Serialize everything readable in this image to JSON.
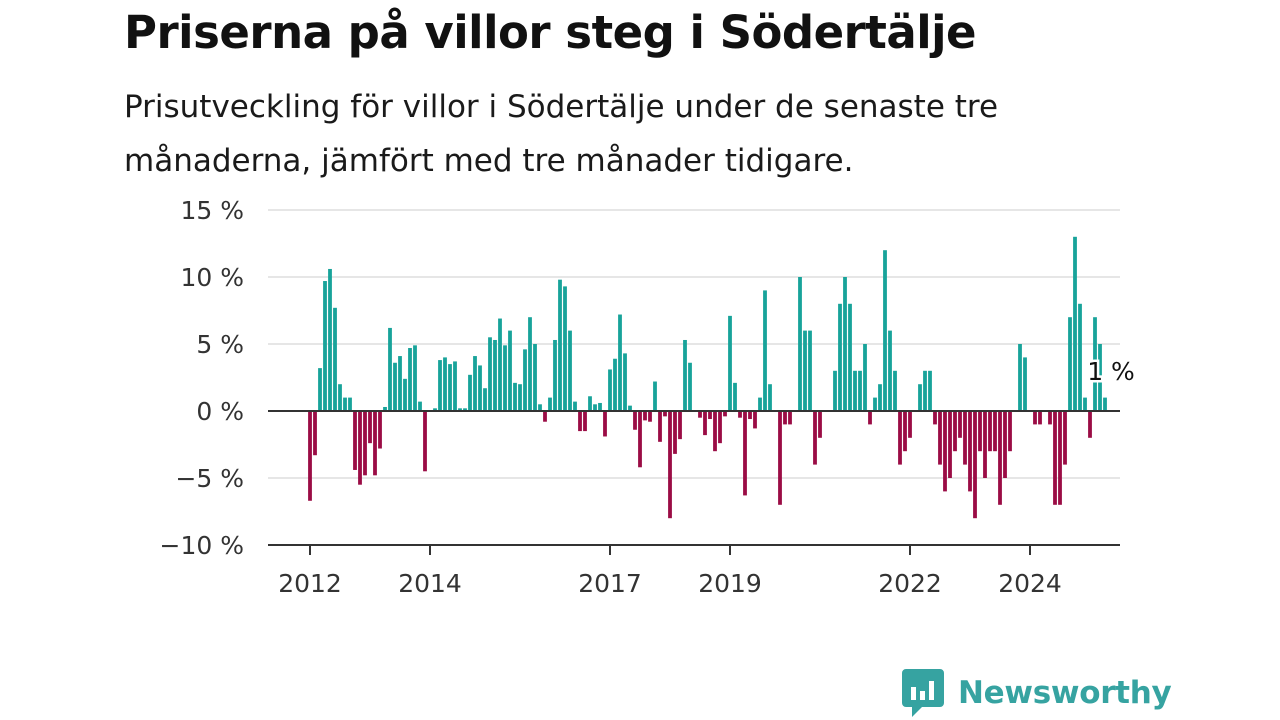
{
  "title": "Priserna på villor steg i Södertälje",
  "subtitle": "Prisutveckling för villor i Södertälje under de senaste tre månaderna, jämfört med tre månader tidigare.",
  "brand": {
    "name": "Newsworthy"
  },
  "colors": {
    "positive": "#18a39a",
    "negative": "#9b0c45",
    "grid": "#dddddd",
    "axis": "#333333",
    "brand": "#36a3a1"
  },
  "chart_data": {
    "type": "bar",
    "title": "Priserna på villor steg i Södertälje",
    "xlabel": "",
    "ylabel": "",
    "ylim": [
      -10,
      15
    ],
    "yticks": [
      15,
      10,
      5,
      0,
      -5,
      -10
    ],
    "ytick_labels": [
      "15 %",
      "10 %",
      "5 %",
      "0 %",
      "−5 %",
      "−10 %"
    ],
    "xtick_labels": [
      "2012",
      "2014",
      "2017",
      "2019",
      "2022",
      "2024"
    ],
    "x_start": "2012-01",
    "frequency": "monthly",
    "grid": true,
    "annotation": {
      "text": "1 %",
      "target": "last"
    },
    "values": [
      -6.7,
      -3.3,
      3.2,
      9.7,
      10.6,
      7.7,
      2.0,
      1.0,
      1.0,
      -4.4,
      -5.5,
      -4.8,
      -2.4,
      -4.8,
      -2.8,
      0.3,
      6.2,
      3.6,
      4.1,
      2.4,
      4.7,
      4.9,
      0.7,
      -4.5,
      0.0,
      0.2,
      3.8,
      4.0,
      3.5,
      3.7,
      0.2,
      0.2,
      2.7,
      4.1,
      3.4,
      1.7,
      5.5,
      5.3,
      6.9,
      4.9,
      6.0,
      2.1,
      2.0,
      4.6,
      7.0,
      5.0,
      0.5,
      -0.8,
      1.0,
      5.3,
      9.8,
      9.3,
      6.0,
      0.7,
      -1.5,
      -1.5,
      1.1,
      0.5,
      0.6,
      -1.9,
      3.1,
      3.9,
      7.2,
      4.3,
      0.4,
      -1.4,
      -4.2,
      -0.7,
      -0.8,
      2.2,
      -2.3,
      -0.4,
      -8.0,
      -3.2,
      -2.1,
      5.3,
      3.6,
      0.0,
      -0.5,
      -1.8,
      -0.6,
      -3.0,
      -2.4,
      -0.4,
      7.1,
      2.1,
      -0.5,
      -6.3,
      -0.6,
      -1.3,
      1.0,
      9.0,
      2.0,
      0.0,
      -7.0,
      -1.0,
      -1.0,
      0.0,
      10.0,
      6.0,
      6.0,
      -4.0,
      -2.0,
      0.0,
      0.0,
      3.0,
      8.0,
      10.0,
      8.0,
      3.0,
      3.0,
      5.0,
      -1.0,
      1.0,
      2.0,
      12.0,
      6.0,
      3.0,
      -4.0,
      -3.0,
      -2.0,
      0.0,
      2.0,
      3.0,
      3.0,
      -1.0,
      -4.0,
      -6.0,
      -5.0,
      -3.0,
      -2.0,
      -4.0,
      -6.0,
      -8.0,
      -3.0,
      -5.0,
      -3.0,
      -3.0,
      -7.0,
      -5.0,
      -3.0,
      0.0,
      5.0,
      4.0,
      0.0,
      -1.0,
      -1.0,
      0.0,
      -1.0,
      -7.0,
      -7.0,
      -4.0,
      7.0,
      13.0,
      8.0,
      1.0,
      -2.0,
      7.0,
      5.0,
      1.0
    ]
  }
}
